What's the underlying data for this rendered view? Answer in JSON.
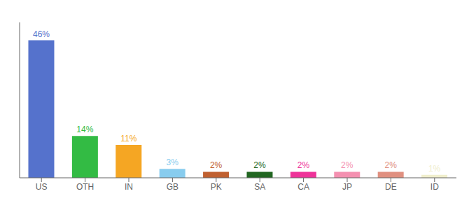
{
  "chart_data": {
    "type": "bar",
    "categories": [
      "US",
      "OTH",
      "IN",
      "GB",
      "PK",
      "SA",
      "CA",
      "JP",
      "DE",
      "ID"
    ],
    "values": [
      46,
      14,
      11,
      3,
      2,
      2,
      2,
      2,
      2,
      1
    ],
    "value_labels": [
      "46%",
      "14%",
      "11%",
      "3%",
      "2%",
      "2%",
      "2%",
      "2%",
      "2%",
      "1%"
    ],
    "colors": [
      "#5572cc",
      "#33bb44",
      "#f5a623",
      "#88ccee",
      "#c06030",
      "#226622",
      "#ee3399",
      "#f490b0",
      "#e09080",
      "#f0eecc"
    ],
    "ylim": [
      0,
      52
    ],
    "yticks": [],
    "grid": false,
    "data_labels": true,
    "tick_labels": "x"
  }
}
